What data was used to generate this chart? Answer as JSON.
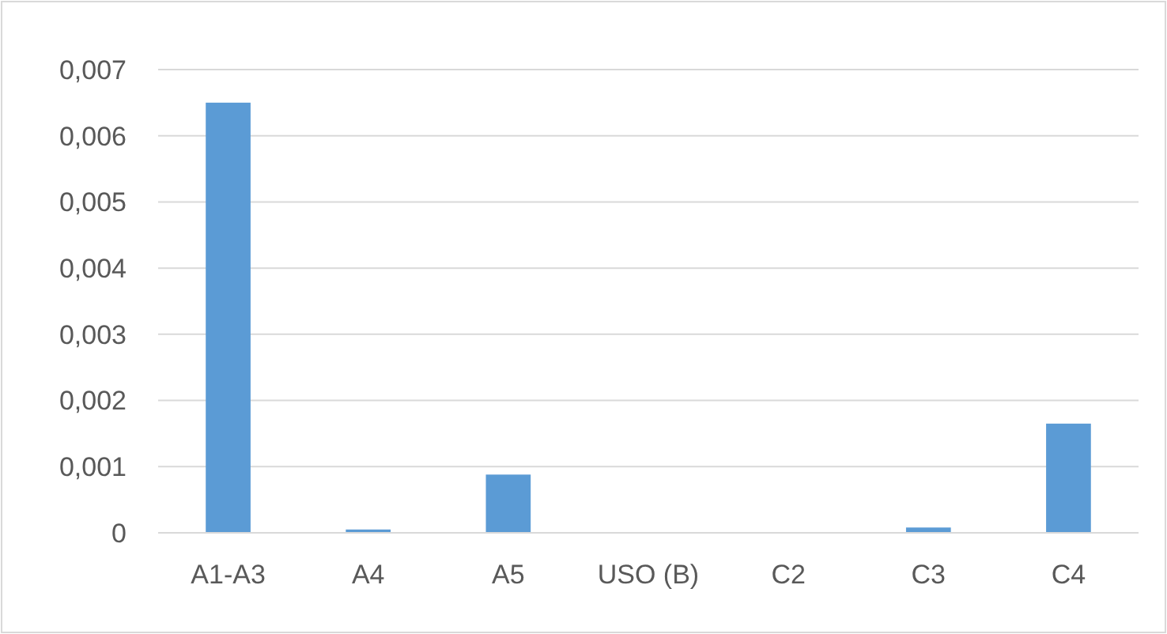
{
  "chart_data": {
    "type": "bar",
    "categories": [
      "A1-A3",
      "A4",
      "A5",
      "USO (B)",
      "C2",
      "C3",
      "C4"
    ],
    "values": [
      0.0065,
      5e-05,
      0.00088,
      0,
      0,
      8e-05,
      0.00165
    ],
    "color": "#5b9bd5",
    "ylim": [
      0,
      0.007
    ],
    "yticks": [
      0,
      {
        "value": 0.001,
        "label": "0,001"
      },
      {
        "value": 0.002,
        "label": "0,002"
      },
      {
        "value": 0.003,
        "label": "0,003"
      },
      {
        "value": 0.004,
        "label": "0,004"
      },
      {
        "value": 0.005,
        "label": "0,005"
      },
      {
        "value": 0.006,
        "label": "0,006"
      },
      {
        "value": 0.007,
        "label": "0,007"
      }
    ],
    "grid": "y"
  }
}
